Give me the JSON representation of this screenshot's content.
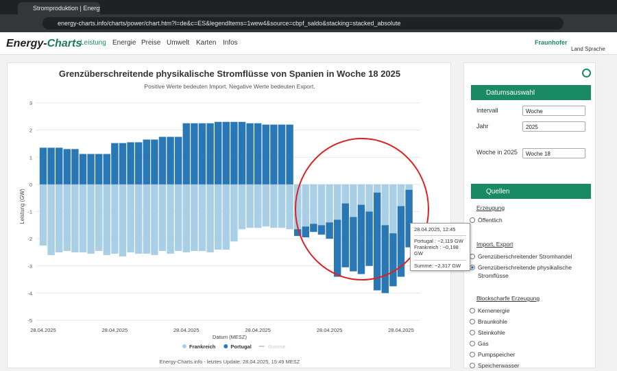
{
  "browser": {
    "tab_title": "Stromproduktion | Energy-Charts",
    "url": "energy-charts.info/charts/power/chart.htm?l=de&c=ES&legendItems=1wew4&source=cbpf_saldo&stacking=stacked_absolute"
  },
  "nav": {
    "logo_main": "Energy-",
    "logo_rest": "Charts",
    "items": [
      "Leistung",
      "Energie",
      "Preise",
      "Umwelt",
      "Karten",
      "Infos"
    ],
    "brand": "Fraunhofer",
    "land": "Land",
    "sprache": "Sprache"
  },
  "chart_data": {
    "type": "bar",
    "stacked": true,
    "title": "Grenzüberschreitende physikalische Stromflüsse von Spanien in Woche 18 2025",
    "subtitle": "Positive Werte bedeuten Import. Negative Werte bedeuten Export.",
    "ylabel": "Leistung (GW)",
    "xlabel": "Datum (MESZ)",
    "footer": "Energy-Charts.info - letztes Update: 28.04.2025, 15:49 MESZ",
    "categories": [
      "28.04.2025",
      null,
      null,
      null,
      null,
      null,
      null,
      null,
      null,
      "28.04.2025",
      null,
      null,
      null,
      null,
      null,
      null,
      null,
      null,
      "28.04.2025",
      null,
      null,
      null,
      null,
      null,
      null,
      null,
      null,
      "28.04.2025",
      null,
      null,
      null,
      null,
      null,
      null,
      null,
      null,
      "28.04.2025",
      null,
      null,
      null,
      null,
      null,
      null,
      null,
      null,
      "28.04.2025",
      null
    ],
    "series": [
      {
        "name": "Frankreich",
        "color": "#a8cfe6",
        "values": [
          -2.25,
          -2.6,
          -2.5,
          -2.45,
          -2.5,
          -2.5,
          -2.55,
          -2.45,
          -2.6,
          -2.55,
          -2.65,
          -2.5,
          -2.55,
          -2.55,
          -2.6,
          -2.45,
          -2.55,
          -2.45,
          -2.5,
          -2.45,
          -2.45,
          -2.5,
          -2.4,
          -2.4,
          -2.1,
          -1.65,
          -1.6,
          -1.6,
          -1.55,
          -1.6,
          -1.6,
          -1.65,
          -1.65,
          -1.55,
          -1.45,
          -1.5,
          -1.4,
          -1.3,
          -0.7,
          -1.2,
          -0.75,
          -1.0,
          -0.3,
          -1.5,
          -1.8,
          -0.8,
          -0.198
        ]
      },
      {
        "name": "Portugal",
        "color": "#2a77b5",
        "values": [
          1.35,
          1.35,
          1.35,
          1.3,
          1.3,
          1.12,
          1.12,
          1.12,
          1.12,
          1.52,
          1.52,
          1.55,
          1.55,
          1.65,
          1.65,
          1.75,
          1.75,
          1.75,
          2.25,
          2.25,
          2.25,
          2.25,
          2.3,
          2.3,
          2.3,
          2.3,
          2.25,
          2.25,
          2.2,
          2.2,
          2.2,
          2.2,
          -0.25,
          -0.4,
          -0.3,
          -0.35,
          -0.6,
          -2.1,
          -2.35,
          -2.0,
          -2.55,
          -2.0,
          -3.6,
          -2.5,
          -1.95,
          -2.6,
          -2.119
        ]
      }
    ],
    "hidden_legend": [
      "Summe"
    ],
    "ylim": [
      -5,
      3
    ],
    "yticks": [
      3,
      2,
      1,
      0,
      -1,
      -2,
      -3,
      -4,
      -5
    ],
    "grid": true,
    "tooltip": {
      "title": "28.04.2025, 12:45",
      "lines": [
        "Portugal : −2,119 GW",
        "Frankreich : −0,198 GW"
      ],
      "sum": "Summe: −2,317 GW"
    }
  },
  "sidebar": {
    "datum": {
      "title": "Datumsauswahl",
      "fields": [
        {
          "label": "Intervall",
          "value": "Woche"
        },
        {
          "label": "Jahr",
          "value": "2025"
        },
        {
          "label": "Woche in 2025",
          "value": "Woche 18"
        }
      ]
    },
    "quellen": {
      "title": "Quellen",
      "groups": [
        {
          "title": "Erzeugung",
          "options": [
            "Öffentlich"
          ]
        },
        {
          "title": "Import, Export",
          "options": [
            "Grenzüberschreitender Stromhandel",
            "Grenzüberschreitende physikalische Stromflüsse"
          ]
        },
        {
          "title": "Blockscharfe Erzeugung",
          "options": [
            "Kernenergie",
            "Braunkohle",
            "Steinkohle",
            "Gas",
            "Pumpspeicher",
            "Speicherwasser"
          ]
        }
      ]
    }
  }
}
